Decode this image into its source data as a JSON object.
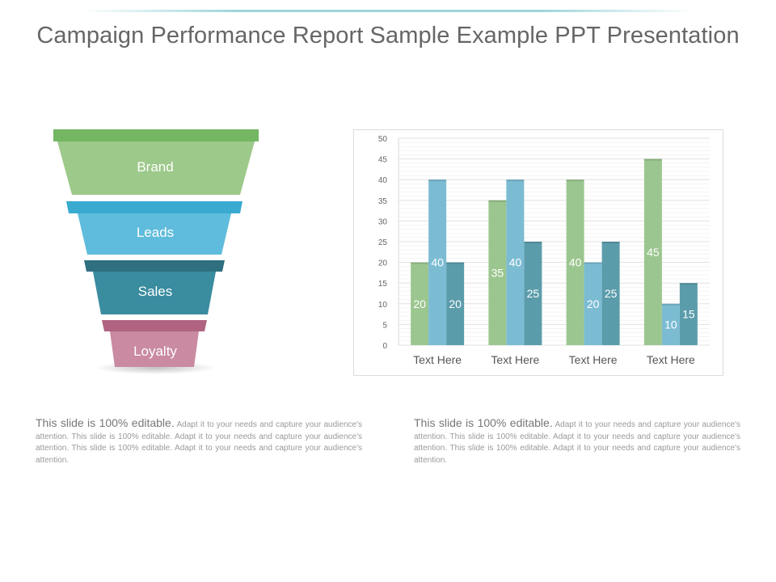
{
  "slide": {
    "title": "Campaign Performance Report Sample Example PPT Presentation"
  },
  "funnel": {
    "stages": [
      {
        "label": "Brand",
        "color": "#9dc98a",
        "band_color": "#74b662"
      },
      {
        "label": "Leads",
        "color": "#5fbcdc",
        "band_color": "#39abd0"
      },
      {
        "label": "Sales",
        "color": "#3a8c9f",
        "band_color": "#2f6f80"
      },
      {
        "label": "Loyalty",
        "color": "#c98aa2",
        "band_color": "#b06482"
      }
    ]
  },
  "chart_data": {
    "type": "bar",
    "categories": [
      "Text Here",
      "Text Here",
      "Text Here",
      "Text Here"
    ],
    "series": [
      {
        "values": [
          20,
          35,
          40,
          45
        ],
        "color": "#9cc68f"
      },
      {
        "values": [
          40,
          40,
          20,
          10
        ],
        "color": "#7bbcd3"
      },
      {
        "values": [
          20,
          25,
          25,
          15
        ],
        "color": "#5b9cab"
      }
    ],
    "ylim": [
      0,
      50
    ],
    "yticks": [
      0,
      5,
      10,
      15,
      20,
      25,
      30,
      35,
      40,
      45,
      50
    ],
    "grid": true,
    "legend": "none",
    "data_labels": true
  },
  "descriptions": [
    {
      "lead": "This slide is 100% editable.",
      "body": "Adapt it to your needs and capture your audience's attention. This slide is 100% editable. Adapt it to your needs and capture your audience's attention. This slide is 100% editable. Adapt it to your needs and capture your audience's attention."
    },
    {
      "lead": "This slide is 100% editable.",
      "body": "Adapt it to your needs and capture your audience's attention. This slide is 100% editable. Adapt it to your needs and capture your audience's attention. This slide is 100% editable. Adapt it to your needs and capture your audience's attention."
    }
  ]
}
